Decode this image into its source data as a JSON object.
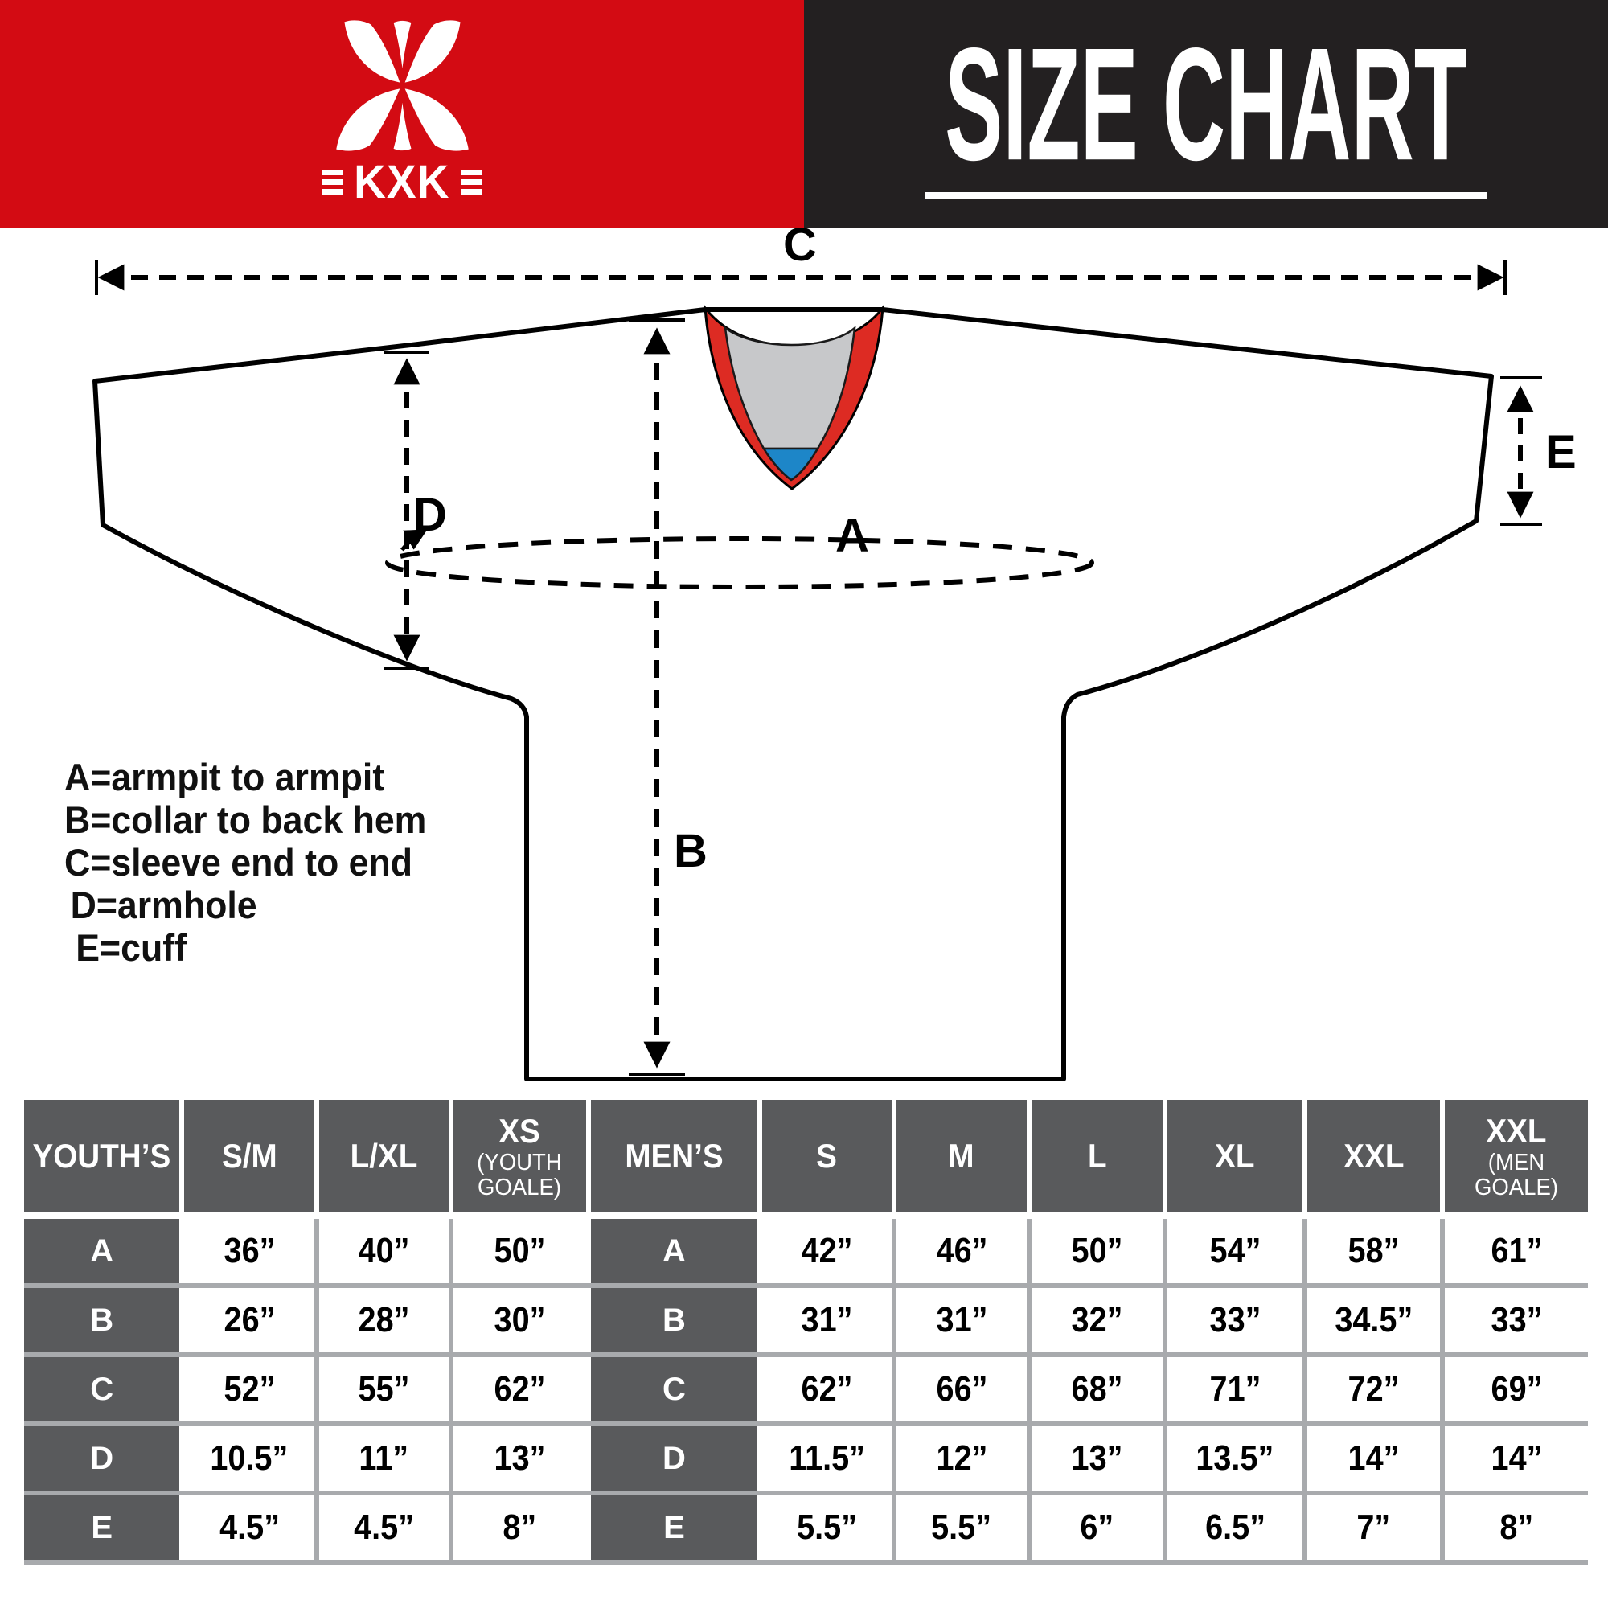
{
  "header": {
    "brand": "KXK",
    "title": "SIZE CHART",
    "colors": {
      "red": "#d30b13",
      "black": "#232021"
    }
  },
  "legend": {
    "lines": [
      "A=armpit to armpit",
      "B=collar to back hem",
      "C=sleeve end to end",
      "D=armhole",
      "E=cuff"
    ]
  },
  "diagram": {
    "labels": {
      "a": "A",
      "b": "B",
      "c": "C",
      "d": "D",
      "e": "E"
    },
    "colors": {
      "collar_red": "#dd2b23",
      "collar_gray": "#c7c8ca",
      "collar_blue": "#1d86c8"
    }
  },
  "size_table": {
    "row_labels": [
      "A",
      "B",
      "C",
      "D",
      "E"
    ],
    "colors": {
      "header_bg": "#595a5c",
      "divider": "#a8aaad"
    },
    "sections": [
      {
        "title": "YOUTH’S",
        "columns": [
          {
            "label": "S/M"
          },
          {
            "label": "L/XL"
          },
          {
            "label": "XS",
            "note": "(YOUTH GOALE)"
          }
        ],
        "rows": [
          [
            "36”",
            "40”",
            "50”"
          ],
          [
            "26”",
            "28”",
            "30”"
          ],
          [
            "52”",
            "55”",
            "62”"
          ],
          [
            "10.5”",
            "11”",
            "13”"
          ],
          [
            "4.5”",
            "4.5”",
            "8”"
          ]
        ]
      },
      {
        "title": "MEN’S",
        "columns": [
          {
            "label": "S"
          },
          {
            "label": "M"
          },
          {
            "label": "L"
          },
          {
            "label": "XL"
          },
          {
            "label": "XXL"
          },
          {
            "label": "XXL",
            "note": "(MEN GOALE)"
          }
        ],
        "rows": [
          [
            "42”",
            "46”",
            "50”",
            "54”",
            "58”",
            "61”"
          ],
          [
            "31”",
            "31”",
            "32”",
            "33”",
            "34.5”",
            "33”"
          ],
          [
            "62”",
            "66”",
            "68”",
            "71”",
            "72”",
            "69”"
          ],
          [
            "11.5”",
            "12”",
            "13”",
            "13.5”",
            "14”",
            "14”"
          ],
          [
            "5.5”",
            "5.5”",
            "6”",
            "6.5”",
            "7”",
            "8”"
          ]
        ]
      }
    ]
  }
}
